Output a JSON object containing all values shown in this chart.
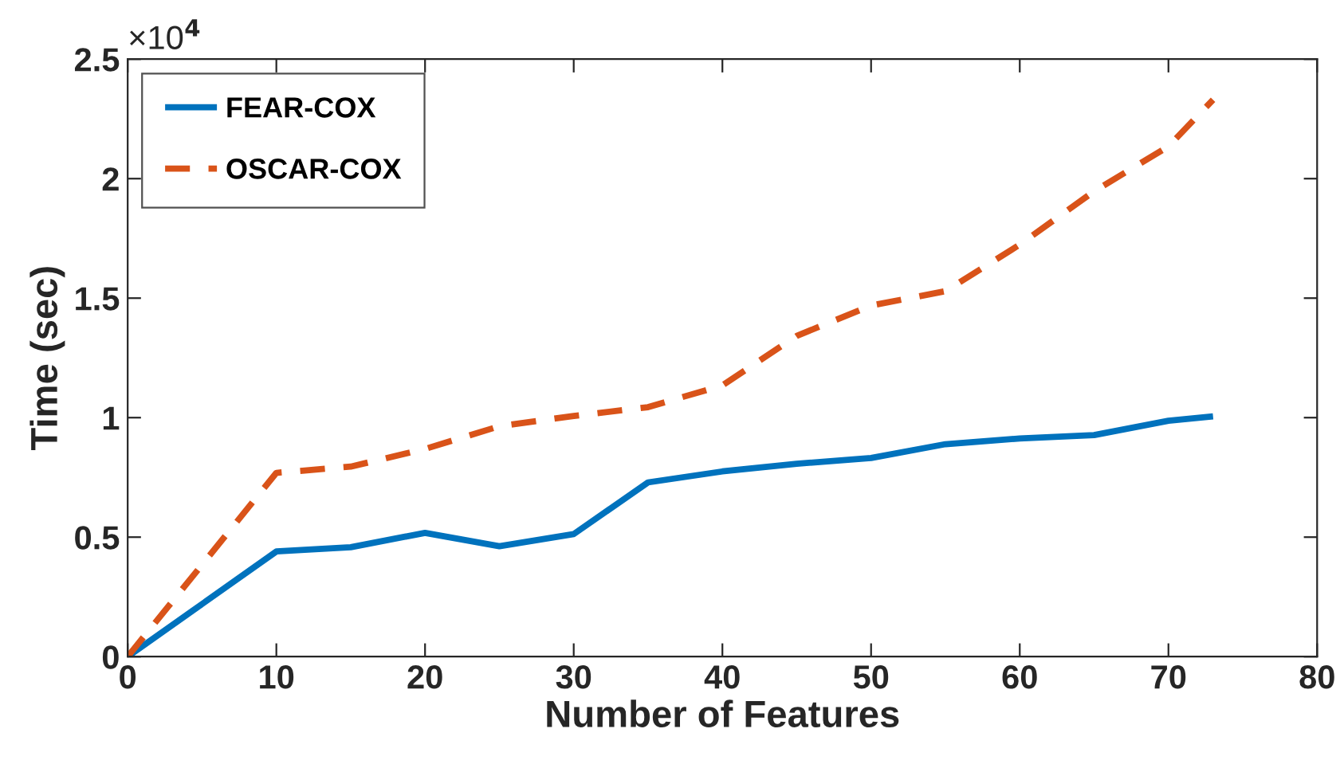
{
  "chart_data": {
    "type": "line",
    "xlabel": "Number of Features",
    "ylabel": "Time (sec)",
    "annotations": [
      "×10$^{4}$"
    ],
    "xlim": [
      0,
      80
    ],
    "xticks": [
      0,
      10,
      20,
      30,
      40,
      50,
      60,
      70,
      80
    ],
    "ylim": [
      0,
      2.5
    ],
    "yticks": [
      0,
      0.5,
      1,
      1.5,
      2,
      2.5
    ],
    "grid": false,
    "legend": "top left",
    "series": [
      {
        "name": "FEAR-COX",
        "color": "#0072bd",
        "line_style": "solid",
        "x": [
          0,
          10,
          15,
          20,
          25,
          30,
          35,
          40,
          45,
          50,
          55,
          60,
          65,
          70,
          73
        ],
        "values": [
          0,
          0.44,
          0.458,
          0.518,
          0.462,
          0.513,
          0.729,
          0.775,
          0.807,
          0.831,
          0.889,
          0.913,
          0.927,
          0.987,
          1.005
        ]
      },
      {
        "name": "OSCAR-COX",
        "color": "#d95319",
        "line_style": "dashed",
        "x": [
          0,
          10,
          15,
          20,
          25,
          30,
          35,
          40,
          45,
          50,
          55,
          60,
          65,
          70,
          73
        ],
        "values": [
          0,
          0.769,
          0.795,
          0.869,
          0.964,
          1.007,
          1.044,
          1.135,
          1.342,
          1.469,
          1.529,
          1.724,
          1.947,
          2.135,
          2.33
        ]
      }
    ]
  }
}
